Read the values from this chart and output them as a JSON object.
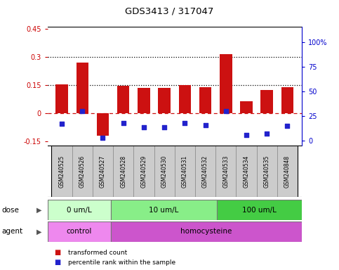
{
  "title": "GDS3413 / 317047",
  "samples": [
    "GSM240525",
    "GSM240526",
    "GSM240527",
    "GSM240528",
    "GSM240529",
    "GSM240530",
    "GSM240531",
    "GSM240532",
    "GSM240533",
    "GSM240534",
    "GSM240535",
    "GSM240848"
  ],
  "red_bars": [
    0.155,
    0.27,
    -0.12,
    0.145,
    0.135,
    0.135,
    0.148,
    0.14,
    0.315,
    0.065,
    0.125,
    0.14
  ],
  "blue_dots_right": [
    17,
    30,
    3,
    18,
    14,
    14,
    18,
    16,
    30,
    6,
    7,
    15
  ],
  "ylim_left": [
    -0.175,
    0.46
  ],
  "ylim_right": [
    -5,
    115
  ],
  "yticks_left": [
    -0.15,
    0.0,
    0.15,
    0.3,
    0.45
  ],
  "yticks_right": [
    0,
    25,
    50,
    75,
    100
  ],
  "ytick_labels_left": [
    "-0.15",
    "0",
    "0.15",
    "0.3",
    "0.45"
  ],
  "ytick_labels_right": [
    "0",
    "25",
    "50",
    "75",
    "100%"
  ],
  "hlines": [
    0.15,
    0.3
  ],
  "zero_line": 0.0,
  "dose_groups": [
    {
      "label": "0 um/L",
      "start": 0,
      "end": 3,
      "color": "#ccffcc"
    },
    {
      "label": "10 um/L",
      "start": 3,
      "end": 8,
      "color": "#88ee88"
    },
    {
      "label": "100 um/L",
      "start": 8,
      "end": 12,
      "color": "#44cc44"
    }
  ],
  "agent_groups": [
    {
      "label": "control",
      "start": 0,
      "end": 3,
      "color": "#ee88ee"
    },
    {
      "label": "homocysteine",
      "start": 3,
      "end": 12,
      "color": "#cc55cc"
    }
  ],
  "dose_label": "dose",
  "agent_label": "agent",
  "red_bar_color": "#cc1111",
  "blue_dot_color": "#2222cc",
  "legend_red": "transformed count",
  "legend_blue": "percentile rank within the sample",
  "bar_width": 0.6,
  "left_tick_color": "#cc0000",
  "right_tick_color": "#0000cc",
  "sample_box_color": "#cccccc",
  "chart_border_color": "#000000",
  "n_samples": 12
}
